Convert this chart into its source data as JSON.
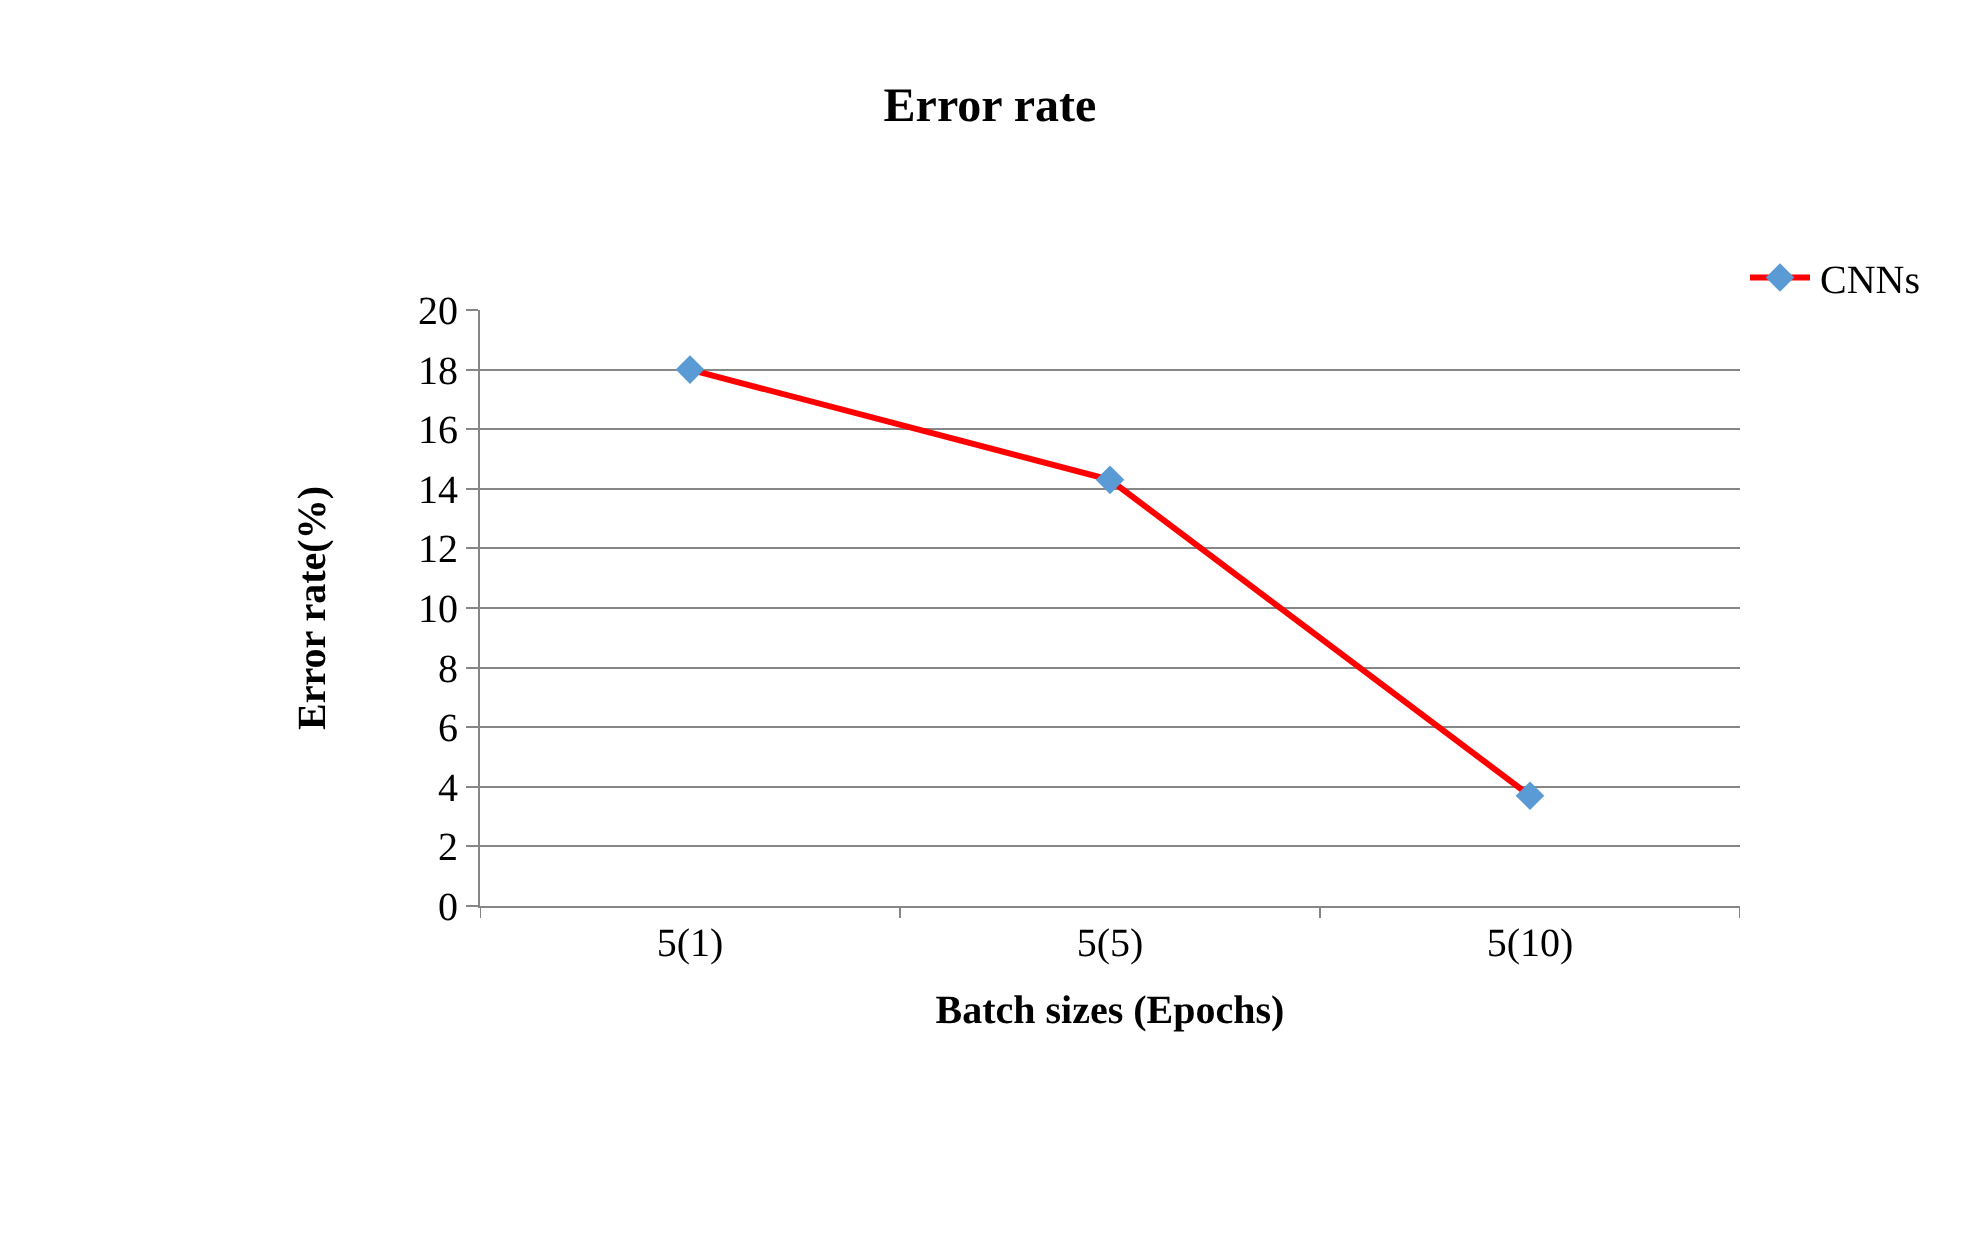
{
  "chart_data": {
    "type": "line",
    "title": "Error rate",
    "xlabel": "Batch sizes (Epochs)",
    "ylabel": "Error rate(%)",
    "categories": [
      "5(1)",
      "5(5)",
      "5(10)"
    ],
    "series": [
      {
        "name": "CNNs",
        "color": "#ff0000",
        "colors": [
          "#5b9bd5",
          "#5b9bd5",
          "#5b9bd5"
        ],
        "values": [
          18,
          14.3,
          3.7
        ]
      }
    ],
    "ylim": [
      0,
      20
    ],
    "yticks": [
      0,
      2,
      4,
      6,
      8,
      10,
      12,
      14,
      16,
      18,
      20
    ],
    "grid": "y",
    "legend": "top right",
    "marker": "diamond",
    "line_style": "solid"
  }
}
